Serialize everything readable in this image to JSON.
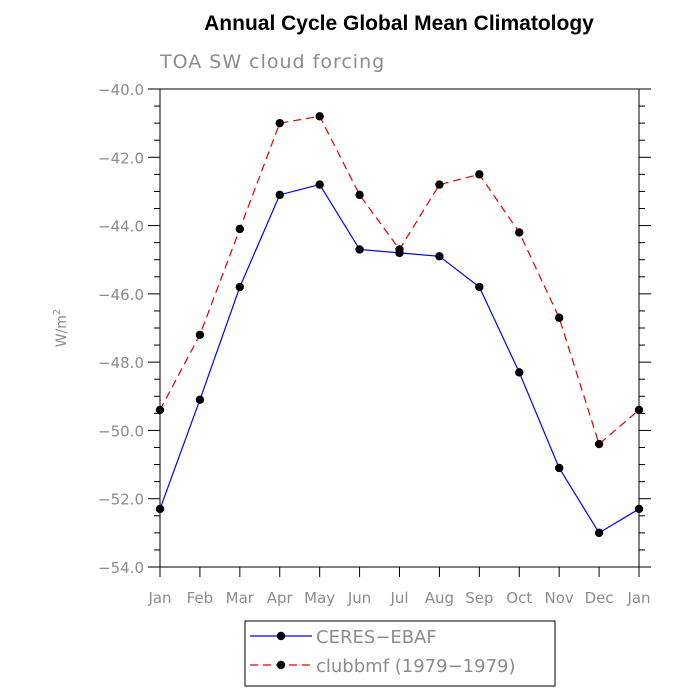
{
  "chart_data": {
    "type": "line",
    "title": "Annual Cycle Global Mean Climatology",
    "subtitle": "TOA SW cloud forcing",
    "ylabel_base": "W/m",
    "ylabel_sup": "2",
    "xlabel": "",
    "categories": [
      "Jan",
      "Feb",
      "Mar",
      "Apr",
      "May",
      "Jun",
      "Jul",
      "Aug",
      "Sep",
      "Oct",
      "Nov",
      "Dec",
      "Jan"
    ],
    "ylim": [
      -54.0,
      -40.0
    ],
    "yticks": [
      -54.0,
      -52.0,
      -50.0,
      -48.0,
      -46.0,
      -44.0,
      -42.0,
      -40.0
    ],
    "ytick_labels": [
      "−54.0",
      "−52.0",
      "−50.0",
      "−48.0",
      "−46.0",
      "−44.0",
      "−42.0",
      "−40.0"
    ],
    "grid": false,
    "legend_position": "bottom",
    "series": [
      {
        "name": "CERES−EBAF",
        "color": "#0000ff",
        "dash": "solid",
        "values": [
          -52.3,
          -49.1,
          -45.8,
          -43.1,
          -42.8,
          -44.7,
          -44.8,
          -44.9,
          -45.8,
          -48.3,
          -51.1,
          -53.0,
          -52.3
        ]
      },
      {
        "name": "clubbmf (1979−1979)",
        "color": "#e00000",
        "dash": "dashed",
        "values": [
          -49.4,
          -47.2,
          -44.1,
          -41.0,
          -40.8,
          -43.1,
          -44.7,
          -42.8,
          -42.5,
          -44.2,
          -46.7,
          -50.4,
          -49.4
        ]
      }
    ]
  }
}
